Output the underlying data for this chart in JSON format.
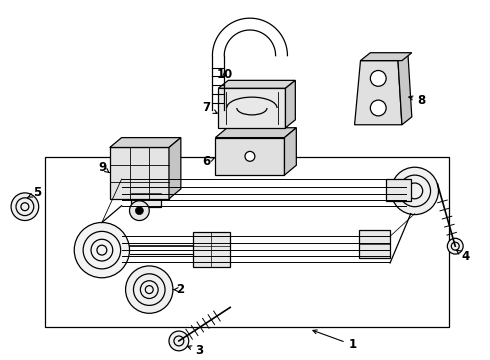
{
  "bg_color": "#ffffff",
  "line_color": "#000000",
  "figsize": [
    4.9,
    3.6
  ],
  "dpi": 100
}
